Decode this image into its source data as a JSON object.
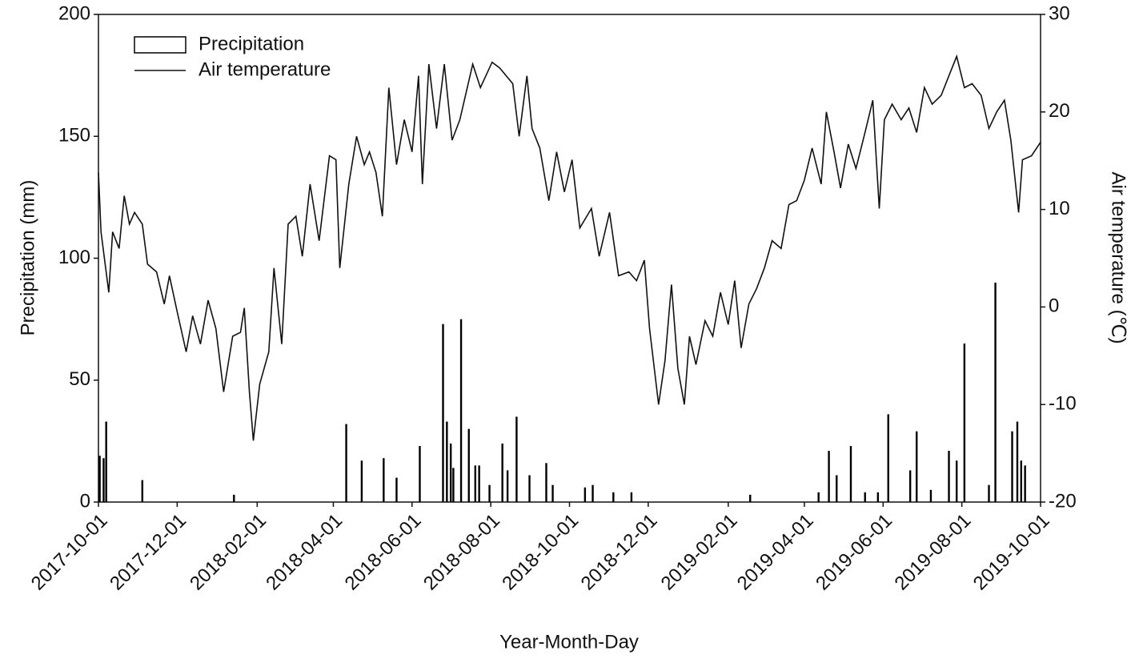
{
  "chart_data": {
    "type": "combo",
    "x_label": "Year-Month-Day",
    "y_label": "Precipitation (mm)",
    "y2_label": "Air temperature (℃)",
    "xlim": [
      "2017-10-01",
      "2019-10-01"
    ],
    "xticks": [
      "2017-10-01",
      "2017-12-01",
      "2018-02-01",
      "2018-04-01",
      "2018-06-01",
      "2018-08-01",
      "2018-10-01",
      "2018-12-01",
      "2019-02-01",
      "2019-04-01",
      "2019-06-01",
      "2019-08-01",
      "2019-10-01"
    ],
    "ylim": [
      0,
      200
    ],
    "yticks": [
      0,
      50,
      100,
      150,
      200
    ],
    "y2lim": [
      -20,
      30
    ],
    "y2ticks": [
      -20,
      -10,
      0,
      10,
      20,
      30
    ],
    "legend": "upper left",
    "series": [
      {
        "name": "Precipitation",
        "type": "bar",
        "color": "#000000",
        "x": [
          "2017-10-02",
          "2017-10-05",
          "2017-10-07",
          "2017-11-04",
          "2018-01-14",
          "2018-04-11",
          "2018-04-23",
          "2018-05-10",
          "2018-05-20",
          "2018-06-07",
          "2018-06-25",
          "2018-06-28",
          "2018-07-01",
          "2018-07-03",
          "2018-07-09",
          "2018-07-15",
          "2018-07-20",
          "2018-07-23",
          "2018-07-31",
          "2018-08-10",
          "2018-08-14",
          "2018-08-21",
          "2018-08-31",
          "2018-09-13",
          "2018-09-18",
          "2018-10-13",
          "2018-10-19",
          "2018-11-04",
          "2018-11-18",
          "2019-02-18",
          "2019-04-12",
          "2019-04-20",
          "2019-04-26",
          "2019-05-07",
          "2019-05-18",
          "2019-05-28",
          "2019-06-05",
          "2019-06-22",
          "2019-06-27",
          "2019-07-08",
          "2019-07-22",
          "2019-07-28",
          "2019-08-03",
          "2019-08-22",
          "2019-08-27",
          "2019-09-09",
          "2019-09-13",
          "2019-09-16",
          "2019-09-19"
        ],
        "values": [
          19,
          18,
          33,
          9,
          3,
          32,
          17,
          18,
          10,
          23,
          73,
          33,
          24,
          14,
          75,
          30,
          15,
          15,
          7,
          24,
          13,
          35,
          11,
          16,
          7,
          6,
          7,
          4,
          4,
          3,
          4,
          21,
          11,
          23,
          4,
          4,
          36,
          13,
          29,
          5,
          21,
          17,
          65,
          7,
          90,
          29,
          33,
          17,
          15
        ]
      },
      {
        "name": "Air temperature",
        "type": "line",
        "axis": "y2",
        "color": "#111111",
        "x": [
          "2017-10-01",
          "2017-10-03",
          "2017-10-09",
          "2017-10-12",
          "2017-10-17",
          "2017-10-21",
          "2017-10-25",
          "2017-10-29",
          "2017-11-04",
          "2017-11-08",
          "2017-11-15",
          "2017-11-21",
          "2017-11-25",
          "2017-12-01",
          "2017-12-08",
          "2017-12-13",
          "2017-12-19",
          "2017-12-25",
          "2017-12-31",
          "2018-01-06",
          "2018-01-13",
          "2018-01-19",
          "2018-01-22",
          "2018-01-26",
          "2018-01-29",
          "2018-02-03",
          "2018-02-10",
          "2018-02-14",
          "2018-02-20",
          "2018-02-25",
          "2018-03-03",
          "2018-03-08",
          "2018-03-14",
          "2018-03-21",
          "2018-03-29",
          "2018-04-03",
          "2018-04-06",
          "2018-04-13",
          "2018-04-19",
          "2018-04-25",
          "2018-04-29",
          "2018-05-04",
          "2018-05-09",
          "2018-05-14",
          "2018-05-20",
          "2018-05-26",
          "2018-06-01",
          "2018-06-06",
          "2018-06-09",
          "2018-06-14",
          "2018-06-20",
          "2018-06-26",
          "2018-07-02",
          "2018-07-08",
          "2018-07-18",
          "2018-07-24",
          "2018-08-02",
          "2018-08-08",
          "2018-08-18",
          "2018-08-23",
          "2018-08-29",
          "2018-09-02",
          "2018-09-08",
          "2018-09-15",
          "2018-09-21",
          "2018-09-27",
          "2018-10-03",
          "2018-10-09",
          "2018-10-18",
          "2018-10-24",
          "2018-11-01",
          "2018-11-08",
          "2018-11-16",
          "2018-11-22",
          "2018-11-28",
          "2018-12-02",
          "2018-12-09",
          "2018-12-14",
          "2018-12-19",
          "2018-12-24",
          "2018-12-29",
          "2019-01-02",
          "2019-01-07",
          "2019-01-14",
          "2019-01-20",
          "2019-01-26",
          "2019-02-01",
          "2019-02-06",
          "2019-02-11",
          "2019-02-17",
          "2019-02-23",
          "2019-03-01",
          "2019-03-07",
          "2019-03-14",
          "2019-03-20",
          "2019-03-26",
          "2019-04-01",
          "2019-04-07",
          "2019-04-14",
          "2019-04-18",
          "2019-04-24",
          "2019-04-29",
          "2019-05-05",
          "2019-05-11",
          "2019-05-18",
          "2019-05-24",
          "2019-05-29",
          "2019-06-02",
          "2019-06-08",
          "2019-06-15",
          "2019-06-21",
          "2019-06-27",
          "2019-07-03",
          "2019-07-09",
          "2019-07-16",
          "2019-07-22",
          "2019-07-28",
          "2019-08-03",
          "2019-08-09",
          "2019-08-16",
          "2019-08-22",
          "2019-08-28",
          "2019-09-03",
          "2019-09-08",
          "2019-09-14",
          "2019-09-17",
          "2019-09-24",
          "2019-10-01"
        ],
        "values": [
          13.8,
          7.7,
          1.5,
          7.7,
          6.0,
          11.4,
          8.5,
          9.7,
          8.5,
          4.4,
          3.6,
          0.3,
          3.2,
          -0.5,
          -4.6,
          -0.9,
          -3.8,
          0.7,
          -2.2,
          -8.7,
          -3.0,
          -2.6,
          -0.1,
          -8.7,
          -13.7,
          -7.9,
          -4.6,
          4.0,
          -3.8,
          8.5,
          9.3,
          5.2,
          12.6,
          6.8,
          15.5,
          15.1,
          4.0,
          12.6,
          17.5,
          14.6,
          15.9,
          13.8,
          9.3,
          22.5,
          14.6,
          19.2,
          15.9,
          23.7,
          12.6,
          24.9,
          18.3,
          24.9,
          17.1,
          19.2,
          24.9,
          22.5,
          25.1,
          24.5,
          22.9,
          17.5,
          23.7,
          18.3,
          16.3,
          10.9,
          15.9,
          11.8,
          15.1,
          8.1,
          10.1,
          5.2,
          9.7,
          3.2,
          3.6,
          2.7,
          4.8,
          -2.2,
          -10.0,
          -5.5,
          2.3,
          -6.3,
          -10.0,
          -3.0,
          -5.9,
          -1.4,
          -3.0,
          1.5,
          -1.8,
          2.7,
          -4.2,
          0.3,
          1.9,
          4.0,
          6.8,
          6.0,
          10.5,
          10.9,
          13.0,
          16.3,
          12.6,
          20.0,
          15.9,
          12.2,
          16.7,
          14.2,
          17.9,
          21.2,
          10.1,
          19.2,
          20.8,
          19.2,
          20.4,
          17.9,
          22.5,
          20.8,
          21.7,
          23.7,
          25.7,
          22.5,
          22.9,
          21.7,
          18.3,
          20.0,
          21.2,
          17.1,
          9.7,
          15.1,
          15.5,
          16.9
        ]
      }
    ]
  }
}
